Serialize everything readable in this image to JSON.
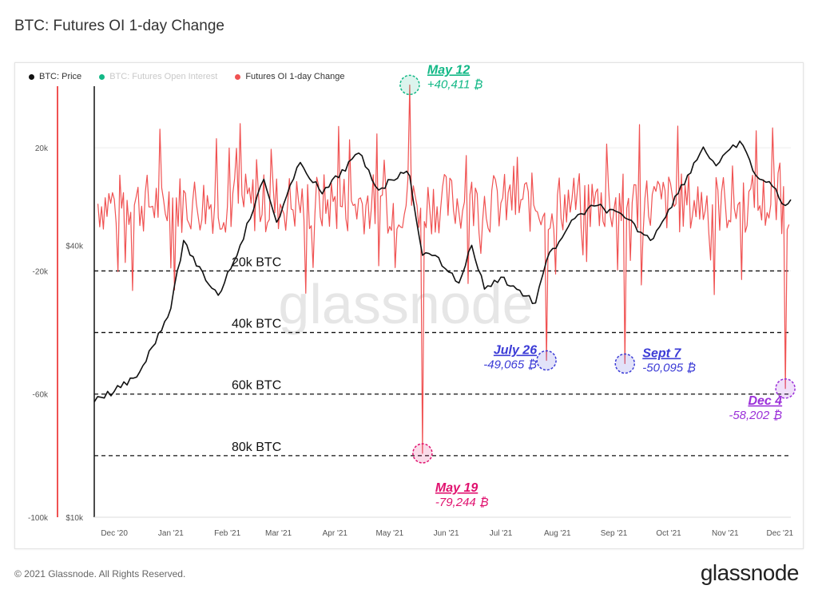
{
  "title": "BTC: Futures OI 1-day Change",
  "legend": [
    {
      "label": "BTC: Price",
      "color": "#111111"
    },
    {
      "label": "BTC: Futures Open Interest",
      "color": "#12b886"
    },
    {
      "label": "Futures OI 1-day Change",
      "color": "#f05252"
    }
  ],
  "footer": {
    "copyright": "© 2021 Glassnode. All Rights Reserved.",
    "logo": "glassnode"
  },
  "watermark": "glassnode",
  "chart_data": {
    "type": "line",
    "x_ticks": [
      "Dec '20",
      "Jan '21",
      "Feb '21",
      "Mar '21",
      "Apr '21",
      "May '21",
      "Jun '21",
      "Jul '21",
      "Aug '21",
      "Sep '21",
      "Oct '21",
      "Nov '21",
      "Dec '21"
    ],
    "left_axis_ticks": [
      "20k",
      "-20k",
      "-60k",
      "-100k"
    ],
    "left_axis_values": [
      20000,
      -20000,
      -60000,
      -100000
    ],
    "left_axis_range": [
      -100000,
      40000
    ],
    "price_axis_ticks": [
      "$40k",
      "$10k"
    ],
    "price_axis_log": true,
    "thresholds": [
      {
        "label": "20k BTC",
        "value": -20000
      },
      {
        "label": "40k BTC",
        "value": -40000
      },
      {
        "label": "60k BTC",
        "value": -60000
      },
      {
        "label": "80k BTC",
        "value": -80000
      }
    ],
    "annotations": [
      {
        "date": "May 12",
        "value": "+40,411 ₿",
        "color": "#12b886",
        "x": "2021-05-12",
        "y": 40411
      },
      {
        "date": "May 19",
        "value": "-79,244 ₿",
        "color": "#e0106e",
        "x": "2021-05-19",
        "y": -79244
      },
      {
        "date": "July 26",
        "value": "-49,065 ₿",
        "color": "#3b3bd6",
        "x": "2021-07-26",
        "y": -49065
      },
      {
        "date": "Sept 7",
        "value": "-50,095 ₿",
        "color": "#3b3bd6",
        "x": "2021-09-07",
        "y": -50095
      },
      {
        "date": "Dec 4",
        "value": "-58,202 ₿",
        "color": "#9b30d9",
        "x": "2021-12-04",
        "y": -58202
      }
    ],
    "series": [
      {
        "name": "BTC: Price",
        "x": [
          "2020-11-20",
          "2020-12-01",
          "2020-12-15",
          "2021-01-01",
          "2021-01-08",
          "2021-01-15",
          "2021-01-27",
          "2021-02-08",
          "2021-02-21",
          "2021-02-28",
          "2021-03-13",
          "2021-03-25",
          "2021-04-14",
          "2021-04-25",
          "2021-05-07",
          "2021-05-12",
          "2021-05-19",
          "2021-05-26",
          "2021-06-08",
          "2021-06-15",
          "2021-06-22",
          "2021-07-01",
          "2021-07-20",
          "2021-07-26",
          "2021-08-07",
          "2021-08-14",
          "2021-08-23",
          "2021-09-07",
          "2021-09-21",
          "2021-10-01",
          "2021-10-20",
          "2021-10-27",
          "2021-11-09",
          "2021-11-18",
          "2021-11-27",
          "2021-12-04",
          "2021-12-07"
        ],
        "values": [
          18000,
          19000,
          21000,
          29000,
          41000,
          36000,
          31000,
          40000,
          56000,
          45000,
          61000,
          52000,
          64000,
          53000,
          58000,
          57000,
          38000,
          38000,
          33000,
          40000,
          32000,
          34000,
          29800,
          37000,
          44000,
          47000,
          49000,
          46000,
          41000,
          48000,
          66000,
          60000,
          68000,
          57000,
          54000,
          49000,
          50500
        ]
      },
      {
        "name": "Futures OI 1-day Change",
        "x": [
          "2021-05-12",
          "2021-05-19",
          "2021-07-26",
          "2021-09-07",
          "2021-12-04"
        ],
        "values": [
          40411,
          -79244,
          -49065,
          -50095,
          -58202
        ]
      }
    ]
  }
}
